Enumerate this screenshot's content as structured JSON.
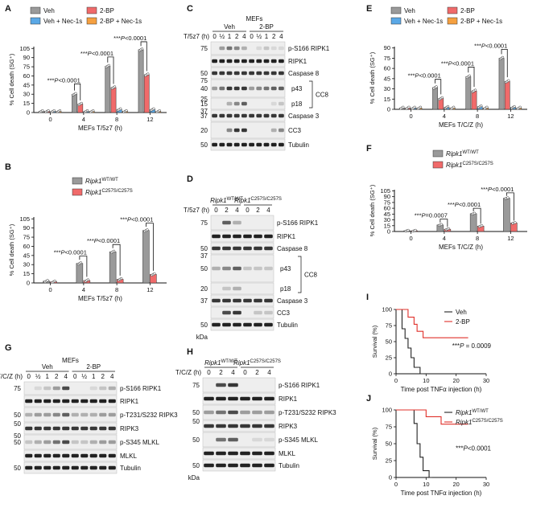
{
  "colors": {
    "veh": "#9a9a9a",
    "bp": "#f06a6a",
    "nec": "#5aa8e6",
    "bpnec": "#f5a040",
    "wt": "#9a9a9a",
    "mut": "#f06a6a",
    "axis": "#111111",
    "blot_bg": "#eeeeee",
    "band": "#222222"
  },
  "panels": {
    "A": {
      "letter": "A"
    },
    "B": {
      "letter": "B"
    },
    "C": {
      "letter": "C"
    },
    "D": {
      "letter": "D"
    },
    "E": {
      "letter": "E"
    },
    "F": {
      "letter": "F"
    },
    "G": {
      "letter": "G"
    },
    "H": {
      "letter": "H"
    },
    "I": {
      "letter": "I"
    },
    "J": {
      "letter": "J"
    }
  },
  "chart_data": [
    {
      "panel": "A",
      "type": "bar",
      "ylabel": "% Cell death (SG⁺)",
      "xlabel": "MEFs T/5z7 (h)",
      "categories": [
        "0",
        "4",
        "8",
        "12"
      ],
      "yticks": [
        0,
        15,
        30,
        45,
        60,
        75,
        90,
        105
      ],
      "ylim": [
        0,
        108
      ],
      "legend_position": "top",
      "series": [
        {
          "name": "Veh",
          "color": "veh",
          "values": [
            2,
            30,
            76,
            103
          ]
        },
        {
          "name": "2-BP",
          "color": "bp",
          "values": [
            2,
            14,
            41,
            62
          ]
        },
        {
          "name": "Veh + Nec-1s",
          "color": "nec",
          "values": [
            2,
            2,
            5,
            5
          ]
        },
        {
          "name": "2-BP + Nec-1s",
          "color": "bpnec",
          "values": [
            2,
            2,
            2,
            2
          ]
        }
      ],
      "brackets": [
        {
          "cat": "4",
          "label": "***P<0.0001",
          "y": 47
        },
        {
          "cat": "8",
          "label": "***P<0.0001",
          "y": 91
        },
        {
          "cat": "12",
          "label": "***P<0.0001",
          "y": 116
        }
      ]
    },
    {
      "panel": "B",
      "type": "bar",
      "ylabel": "% Cell death (SG⁺)",
      "xlabel": "MEFs T/5z7 (h)",
      "categories": [
        "0",
        "4",
        "8",
        "12"
      ],
      "yticks": [
        0,
        15,
        30,
        45,
        60,
        75,
        90,
        105
      ],
      "ylim": [
        0,
        108
      ],
      "legend_position": "top-right",
      "series": [
        {
          "name": "Ripk1WT/WT",
          "color": "wt",
          "values": [
            3,
            32,
            51,
            86
          ]
        },
        {
          "name": "Ripk1C257S/C257S",
          "color": "mut",
          "values": [
            2,
            4,
            6,
            14
          ]
        }
      ],
      "brackets": [
        {
          "cat": "4",
          "label": "***P<0.0001",
          "y": 44
        },
        {
          "cat": "8",
          "label": "***P<0.0001",
          "y": 63
        },
        {
          "cat": "12",
          "label": "***P<0.0001",
          "y": 98
        }
      ]
    },
    {
      "panel": "E",
      "type": "bar",
      "ylabel": "% Cell death (SG⁺)",
      "xlabel": "MEFs T/C/Z (h)",
      "categories": [
        "0",
        "4",
        "8",
        "12"
      ],
      "yticks": [
        0,
        15,
        30,
        45,
        60,
        75,
        90
      ],
      "ylim": [
        0,
        92
      ],
      "legend_position": "top",
      "series": [
        {
          "name": "Veh",
          "color": "veh",
          "values": [
            2,
            32,
            48,
            75
          ]
        },
        {
          "name": "2-BP",
          "color": "bp",
          "values": [
            2,
            16,
            27,
            41
          ]
        },
        {
          "name": "Veh + Nec-1s",
          "color": "nec",
          "values": [
            2,
            3,
            4,
            3
          ]
        },
        {
          "name": "2-BP + Nec-1s",
          "color": "bpnec",
          "values": [
            2,
            2,
            2,
            2
          ]
        }
      ],
      "brackets": [
        {
          "cat": "4",
          "label": "***P<0.0001",
          "y": 44
        },
        {
          "cat": "8",
          "label": "***P<0.0001",
          "y": 62
        },
        {
          "cat": "12",
          "label": "***P<0.0001",
          "y": 88
        }
      ]
    },
    {
      "panel": "F",
      "type": "bar",
      "ylabel": "% Cell death (SG⁺)",
      "xlabel": "MEFs T/C/Z (h)",
      "categories": [
        "0",
        "4",
        "8",
        "12"
      ],
      "yticks": [
        0,
        15,
        30,
        45,
        60,
        75,
        90,
        105
      ],
      "ylim": [
        0,
        108
      ],
      "legend_position": "top-right",
      "series": [
        {
          "name": "Ripk1WT/WT",
          "color": "wt",
          "values": [
            2,
            17,
            46,
            86
          ]
        },
        {
          "name": "Ripk1C257S/C257S",
          "color": "mut",
          "values": [
            2,
            6,
            14,
            22
          ]
        }
      ],
      "brackets": [
        {
          "cat": "4",
          "label": "***P=0.0007",
          "y": 32
        },
        {
          "cat": "8",
          "label": "***P<0.0001",
          "y": 60
        },
        {
          "cat": "12",
          "label": "***P<0.0001",
          "y": 100
        }
      ]
    },
    {
      "panel": "I",
      "type": "line",
      "subtype": "survival",
      "ylabel": "Survival (%)",
      "xlabel": "Time post TNFα injection (h)",
      "xticks": [
        0,
        10,
        20,
        30
      ],
      "yticks": [
        0,
        25,
        50,
        75,
        100
      ],
      "xlim": [
        0,
        30
      ],
      "ylim": [
        0,
        100
      ],
      "legend_position": "top-right",
      "annotation": "***P = 0.0009",
      "series": [
        {
          "name": "Veh",
          "color": "#222222",
          "points": [
            [
              0,
              100
            ],
            [
              2,
              100
            ],
            [
              2,
              70
            ],
            [
              3,
              70
            ],
            [
              3,
              55
            ],
            [
              4,
              55
            ],
            [
              4,
              40
            ],
            [
              5,
              40
            ],
            [
              5,
              25
            ],
            [
              6,
              25
            ],
            [
              6,
              10
            ],
            [
              8,
              10
            ],
            [
              8,
              0
            ],
            [
              9,
              0
            ]
          ]
        },
        {
          "name": "2-BP",
          "color": "#e0302a",
          "points": [
            [
              0,
              100
            ],
            [
              4,
              100
            ],
            [
              4,
              88
            ],
            [
              6,
              88
            ],
            [
              6,
              77
            ],
            [
              7,
              77
            ],
            [
              7,
              66
            ],
            [
              9,
              66
            ],
            [
              9,
              56
            ],
            [
              24,
              56
            ]
          ]
        }
      ]
    },
    {
      "panel": "J",
      "type": "line",
      "subtype": "survival",
      "ylabel": "Survival (%)",
      "xlabel": "Time post TNFα injection (h)",
      "xticks": [
        0,
        10,
        20,
        30
      ],
      "yticks": [
        0,
        25,
        50,
        75,
        100
      ],
      "xlim": [
        0,
        30
      ],
      "ylim": [
        0,
        100
      ],
      "legend_position": "top-right",
      "annotation": "***P<0.0001",
      "series": [
        {
          "name": "Ripk1WT/WT",
          "color": "#222222",
          "points": [
            [
              0,
              100
            ],
            [
              6,
              100
            ],
            [
              6,
              80
            ],
            [
              7,
              80
            ],
            [
              7,
              50
            ],
            [
              8,
              50
            ],
            [
              8,
              30
            ],
            [
              9,
              30
            ],
            [
              9,
              10
            ],
            [
              11,
              10
            ],
            [
              11,
              0
            ],
            [
              12,
              0
            ]
          ]
        },
        {
          "name": "Ripk1C257S/C257S",
          "color": "#e0302a",
          "points": [
            [
              0,
              100
            ],
            [
              10,
              100
            ],
            [
              10,
              90
            ],
            [
              15,
              90
            ],
            [
              15,
              79
            ],
            [
              24,
              79
            ]
          ]
        }
      ]
    }
  ],
  "blots": {
    "C": {
      "header": "MEFs",
      "groups": [
        "Veh",
        "2-BP"
      ],
      "lane_label": "T/5z7 (h)",
      "lanes": [
        "0",
        "½",
        "1",
        "2",
        "4",
        "0",
        "½",
        "1",
        "2",
        "4"
      ],
      "rows": [
        {
          "mw": "75",
          "label": "p-S166 RIPK1",
          "pattern": [
            0,
            0.4,
            0.6,
            0.5,
            0.3,
            0,
            0.1,
            0.2,
            0.1,
            0.1
          ],
          "h": 16
        },
        {
          "mw": "",
          "label": "RIPK1",
          "pattern": [
            1,
            1,
            1,
            1,
            1,
            1,
            1,
            1,
            1,
            1
          ],
          "h": 14
        },
        {
          "mw": "50",
          "label": "Caspase 8",
          "pattern": [
            0.9,
            0.9,
            0.9,
            0.9,
            0.9,
            0.9,
            0.9,
            0.9,
            0.9,
            0.9
          ],
          "h": 14
        },
        {
          "mw": "40",
          "label": "p43",
          "pattern": [
            0.4,
            0.6,
            0.9,
            0.9,
            0.9,
            0.4,
            0.5,
            0.6,
            0.7,
            0.7
          ],
          "h": 22
        },
        {
          "mw": "15",
          "label": "p18",
          "pattern": [
            0,
            0,
            0.3,
            0.5,
            0.7,
            0,
            0,
            0,
            0.1,
            0.2
          ],
          "h": 14
        },
        {
          "mw": "37",
          "label": "Caspase 3",
          "pattern": [
            0.9,
            0.9,
            0.9,
            0.9,
            0.9,
            0.9,
            0.9,
            0.9,
            0.9,
            0.9
          ],
          "h": 14
        },
        {
          "mw": "20",
          "label": "CC3",
          "pattern": [
            0,
            0,
            0.5,
            0.9,
            0.9,
            0,
            0,
            0,
            0.3,
            0.5
          ],
          "h": 20
        },
        {
          "mw": "50",
          "label": "Tubulin",
          "pattern": [
            1,
            1,
            1,
            1,
            1,
            1,
            1,
            1,
            1,
            1
          ],
          "h": 14
        }
      ],
      "bracket_label": "CC8",
      "mw_extra": [
        "75",
        "25",
        "37"
      ]
    },
    "D": {
      "groups": [
        "Ripk1WT/WT",
        "Ripk1C257S/C257S"
      ],
      "lane_label": "T/5z7 (h)",
      "lanes": [
        "0",
        "2",
        "4",
        "0",
        "2",
        "4"
      ],
      "rows": [
        {
          "mw": "75",
          "label": "p-S166 RIPK1",
          "pattern": [
            0,
            0.7,
            0.3,
            0,
            0,
            0
          ],
          "h": 18
        },
        {
          "mw": "",
          "label": "RIPK1",
          "pattern": [
            1,
            1,
            1,
            1,
            1,
            1
          ],
          "h": 14
        },
        {
          "mw": "50",
          "label": "Caspase 8",
          "pattern": [
            0.9,
            0.9,
            0.9,
            0.9,
            0.9,
            0.9
          ],
          "h": 14
        },
        {
          "mw": "50",
          "label": "p43",
          "pattern": [
            0.3,
            0.5,
            0.7,
            0.2,
            0.2,
            0.2
          ],
          "h": 34
        },
        {
          "mw": "20",
          "label": "p18",
          "pattern": [
            0,
            0.2,
            0.3,
            0,
            0,
            0
          ],
          "h": 14
        },
        {
          "mw": "37",
          "label": "Caspase 3",
          "pattern": [
            0.9,
            0.9,
            0.9,
            0.9,
            0.9,
            0.9
          ],
          "h": 14
        },
        {
          "mw": "",
          "label": "CC3",
          "pattern": [
            0,
            0.8,
            0.9,
            0,
            0.2,
            0.2
          ],
          "h": 14
        },
        {
          "mw": "50",
          "label": "Tubulin",
          "pattern": [
            1,
            1,
            1,
            1,
            1,
            1
          ],
          "h": 14
        }
      ],
      "bracket_label": "CC8",
      "kda": "kDa",
      "mw_extra": [
        "37"
      ]
    },
    "G": {
      "header": "MEFs",
      "groups": [
        "Veh",
        "2-BP"
      ],
      "lane_label": "T/C/Z (h)",
      "lanes": [
        "0",
        "½",
        "1",
        "2",
        "4",
        "0",
        "½",
        "1",
        "2",
        "4"
      ],
      "rows": [
        {
          "mw": "75",
          "label": "p-S166 RIPK1",
          "pattern": [
            0,
            0.1,
            0.2,
            0.4,
            0.8,
            0,
            0,
            0.1,
            0.2,
            0.3
          ],
          "h": 16
        },
        {
          "mw": "",
          "label": "RIPK1",
          "pattern": [
            1,
            1,
            1,
            1,
            1,
            1,
            1,
            1,
            1,
            1
          ],
          "h": 14
        },
        {
          "mw": "50",
          "label": "p-T231/S232 RIPK3",
          "pattern": [
            0.3,
            0.4,
            0.4,
            0.5,
            0.7,
            0.3,
            0.3,
            0.3,
            0.4,
            0.4
          ],
          "h": 18
        },
        {
          "mw": "",
          "label": "RIPK3",
          "pattern": [
            0.9,
            0.9,
            0.9,
            0.9,
            0.9,
            0.9,
            0.9,
            0.9,
            0.9,
            0.9
          ],
          "h": 14
        },
        {
          "mw": "50",
          "label": "p-S345 MLKL",
          "pattern": [
            0.2,
            0.3,
            0.4,
            0.6,
            0.8,
            0.2,
            0.2,
            0.3,
            0.4,
            0.4
          ],
          "h": 18
        },
        {
          "mw": "",
          "label": "MLKL",
          "pattern": [
            1,
            1,
            1,
            1,
            1,
            1,
            1,
            1,
            1,
            1
          ],
          "h": 14
        },
        {
          "mw": "50",
          "label": "Tubulin",
          "pattern": [
            1,
            1,
            1,
            1,
            1,
            1,
            1,
            1,
            1,
            1
          ],
          "h": 14
        }
      ],
      "mw_extra": [
        "50",
        "50"
      ]
    },
    "H": {
      "groups": [
        "Ripk1WT/WT",
        "Ripk1C257S/C257S"
      ],
      "lane_label": "T/C/Z (h)",
      "lanes": [
        "0",
        "2",
        "4",
        "0",
        "2",
        "4"
      ],
      "rows": [
        {
          "mw": "75",
          "label": "p-S166 RIPK1",
          "pattern": [
            0,
            0.8,
            0.9,
            0,
            0,
            0
          ],
          "h": 18
        },
        {
          "mw": "",
          "label": "RIPK1",
          "pattern": [
            1,
            1,
            1,
            1,
            1,
            1
          ],
          "h": 14
        },
        {
          "mw": "50",
          "label": "p-T231/S232 RIPK3",
          "pattern": [
            0.4,
            0.6,
            0.8,
            0.4,
            0.4,
            0.4
          ],
          "h": 18
        },
        {
          "mw": "",
          "label": "RIPK3",
          "pattern": [
            0.9,
            0.9,
            0.9,
            0.9,
            0.9,
            0.9
          ],
          "h": 14
        },
        {
          "mw": "50",
          "label": "p-S345 MLKL",
          "pattern": [
            0,
            0.6,
            0.7,
            0,
            0.1,
            0.1
          ],
          "h": 18
        },
        {
          "mw": "",
          "label": "MLKL",
          "pattern": [
            1,
            1,
            1,
            1,
            1,
            1
          ],
          "h": 14
        },
        {
          "mw": "50",
          "label": "Tubulin",
          "pattern": [
            1,
            1,
            1,
            1,
            1,
            1
          ],
          "h": 14
        }
      ],
      "kda": "kDa",
      "mw_extra": [
        "50"
      ]
    }
  }
}
